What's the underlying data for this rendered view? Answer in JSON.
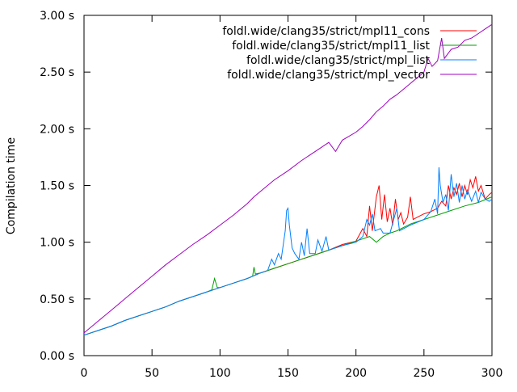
{
  "chart_data": {
    "type": "line",
    "title": "",
    "xlabel": "",
    "ylabel": "Compilation time",
    "xlim": [
      0,
      300
    ],
    "ylim": [
      0,
      3
    ],
    "grid": false,
    "legend_position": "top-right",
    "x_ticks": [
      {
        "value": 0,
        "label": "0"
      },
      {
        "value": 50,
        "label": "50"
      },
      {
        "value": 100,
        "label": "100"
      },
      {
        "value": 150,
        "label": "150"
      },
      {
        "value": 200,
        "label": "200"
      },
      {
        "value": 250,
        "label": "250"
      },
      {
        "value": 300,
        "label": "300"
      }
    ],
    "y_ticks": [
      {
        "value": 0,
        "label": "0.00 s"
      },
      {
        "value": 0.5,
        "label": "0.50 s"
      },
      {
        "value": 1.0,
        "label": "1.00 s"
      },
      {
        "value": 1.5,
        "label": "1.50 s"
      },
      {
        "value": 2.0,
        "label": "2.00 s"
      },
      {
        "value": 2.5,
        "label": "2.50 s"
      },
      {
        "value": 3.0,
        "label": "3.00 s"
      }
    ],
    "series": [
      {
        "name": "foldl.wide/clang35/strict/mpl11_cons",
        "color": "#ff0000",
        "points": [
          [
            0,
            0.18
          ],
          [
            10,
            0.22
          ],
          [
            20,
            0.26
          ],
          [
            30,
            0.31
          ],
          [
            40,
            0.35
          ],
          [
            50,
            0.39
          ],
          [
            60,
            0.43
          ],
          [
            70,
            0.48
          ],
          [
            80,
            0.52
          ],
          [
            90,
            0.56
          ],
          [
            100,
            0.6
          ],
          [
            110,
            0.64
          ],
          [
            120,
            0.68
          ],
          [
            130,
            0.73
          ],
          [
            140,
            0.77
          ],
          [
            150,
            0.81
          ],
          [
            160,
            0.85
          ],
          [
            170,
            0.89
          ],
          [
            180,
            0.93
          ],
          [
            190,
            0.98
          ],
          [
            200,
            1.01
          ],
          [
            205,
            1.12
          ],
          [
            208,
            1.05
          ],
          [
            210,
            1.32
          ],
          [
            212,
            1.1
          ],
          [
            215,
            1.4
          ],
          [
            217,
            1.5
          ],
          [
            219,
            1.2
          ],
          [
            221,
            1.42
          ],
          [
            223,
            1.18
          ],
          [
            225,
            1.3
          ],
          [
            227,
            1.15
          ],
          [
            229,
            1.38
          ],
          [
            231,
            1.2
          ],
          [
            233,
            1.26
          ],
          [
            235,
            1.16
          ],
          [
            238,
            1.22
          ],
          [
            240,
            1.4
          ],
          [
            242,
            1.2
          ],
          [
            245,
            1.22
          ],
          [
            250,
            1.25
          ],
          [
            255,
            1.27
          ],
          [
            260,
            1.3
          ],
          [
            263,
            1.36
          ],
          [
            266,
            1.32
          ],
          [
            268,
            1.5
          ],
          [
            270,
            1.38
          ],
          [
            272,
            1.48
          ],
          [
            274,
            1.42
          ],
          [
            276,
            1.52
          ],
          [
            278,
            1.4
          ],
          [
            280,
            1.5
          ],
          [
            282,
            1.42
          ],
          [
            284,
            1.55
          ],
          [
            286,
            1.48
          ],
          [
            288,
            1.58
          ],
          [
            290,
            1.45
          ],
          [
            292,
            1.5
          ],
          [
            295,
            1.38
          ],
          [
            298,
            1.42
          ],
          [
            300,
            1.44
          ]
        ]
      },
      {
        "name": "foldl.wide/clang35/strict/mpl11_list",
        "color": "#00a000",
        "points": [
          [
            0,
            0.18
          ],
          [
            10,
            0.22
          ],
          [
            20,
            0.26
          ],
          [
            30,
            0.31
          ],
          [
            40,
            0.35
          ],
          [
            50,
            0.39
          ],
          [
            60,
            0.43
          ],
          [
            70,
            0.48
          ],
          [
            80,
            0.52
          ],
          [
            90,
            0.56
          ],
          [
            94,
            0.58
          ],
          [
            96,
            0.68
          ],
          [
            98,
            0.6
          ],
          [
            100,
            0.6
          ],
          [
            110,
            0.64
          ],
          [
            120,
            0.68
          ],
          [
            124,
            0.7
          ],
          [
            125,
            0.78
          ],
          [
            126,
            0.72
          ],
          [
            130,
            0.73
          ],
          [
            140,
            0.77
          ],
          [
            150,
            0.81
          ],
          [
            160,
            0.85
          ],
          [
            170,
            0.89
          ],
          [
            180,
            0.93
          ],
          [
            190,
            0.97
          ],
          [
            200,
            1.01
          ],
          [
            210,
            1.05
          ],
          [
            215,
            1.0
          ],
          [
            220,
            1.05
          ],
          [
            225,
            1.08
          ],
          [
            230,
            1.1
          ],
          [
            240,
            1.16
          ],
          [
            250,
            1.2
          ],
          [
            260,
            1.24
          ],
          [
            270,
            1.28
          ],
          [
            280,
            1.32
          ],
          [
            290,
            1.35
          ],
          [
            300,
            1.4
          ]
        ]
      },
      {
        "name": "foldl.wide/clang35/strict/mpl_list",
        "color": "#0080ff",
        "points": [
          [
            0,
            0.18
          ],
          [
            10,
            0.22
          ],
          [
            20,
            0.26
          ],
          [
            30,
            0.31
          ],
          [
            40,
            0.35
          ],
          [
            50,
            0.39
          ],
          [
            60,
            0.43
          ],
          [
            70,
            0.48
          ],
          [
            80,
            0.52
          ],
          [
            90,
            0.56
          ],
          [
            100,
            0.6
          ],
          [
            110,
            0.64
          ],
          [
            120,
            0.68
          ],
          [
            130,
            0.73
          ],
          [
            135,
            0.75
          ],
          [
            138,
            0.85
          ],
          [
            140,
            0.8
          ],
          [
            143,
            0.9
          ],
          [
            145,
            0.85
          ],
          [
            148,
            1.1
          ],
          [
            149,
            1.28
          ],
          [
            150,
            1.3
          ],
          [
            151,
            1.15
          ],
          [
            153,
            0.95
          ],
          [
            155,
            0.9
          ],
          [
            158,
            0.85
          ],
          [
            160,
            1.0
          ],
          [
            162,
            0.88
          ],
          [
            164,
            1.12
          ],
          [
            166,
            0.9
          ],
          [
            170,
            0.9
          ],
          [
            172,
            1.02
          ],
          [
            175,
            0.92
          ],
          [
            178,
            1.05
          ],
          [
            180,
            0.93
          ],
          [
            190,
            0.97
          ],
          [
            200,
            1.0
          ],
          [
            205,
            1.05
          ],
          [
            208,
            1.2
          ],
          [
            210,
            1.15
          ],
          [
            212,
            1.25
          ],
          [
            214,
            1.1
          ],
          [
            218,
            1.12
          ],
          [
            220,
            1.08
          ],
          [
            225,
            1.08
          ],
          [
            230,
            1.3
          ],
          [
            232,
            1.1
          ],
          [
            240,
            1.15
          ],
          [
            250,
            1.2
          ],
          [
            255,
            1.27
          ],
          [
            258,
            1.38
          ],
          [
            260,
            1.25
          ],
          [
            261,
            1.66
          ],
          [
            262,
            1.5
          ],
          [
            264,
            1.35
          ],
          [
            266,
            1.42
          ],
          [
            268,
            1.28
          ],
          [
            270,
            1.6
          ],
          [
            272,
            1.4
          ],
          [
            274,
            1.52
          ],
          [
            276,
            1.35
          ],
          [
            278,
            1.5
          ],
          [
            280,
            1.38
          ],
          [
            282,
            1.46
          ],
          [
            285,
            1.36
          ],
          [
            288,
            1.45
          ],
          [
            290,
            1.35
          ],
          [
            292,
            1.44
          ],
          [
            295,
            1.38
          ],
          [
            298,
            1.36
          ],
          [
            300,
            1.38
          ]
        ]
      },
      {
        "name": "foldl.wide/clang35/strict/mpl_vector",
        "color": "#a000c0",
        "points": [
          [
            0,
            0.2
          ],
          [
            10,
            0.3
          ],
          [
            20,
            0.4
          ],
          [
            30,
            0.5
          ],
          [
            40,
            0.6
          ],
          [
            50,
            0.7
          ],
          [
            60,
            0.8
          ],
          [
            70,
            0.89
          ],
          [
            80,
            0.98
          ],
          [
            90,
            1.06
          ],
          [
            100,
            1.15
          ],
          [
            110,
            1.24
          ],
          [
            120,
            1.34
          ],
          [
            125,
            1.4
          ],
          [
            130,
            1.45
          ],
          [
            140,
            1.55
          ],
          [
            150,
            1.63
          ],
          [
            160,
            1.72
          ],
          [
            170,
            1.8
          ],
          [
            180,
            1.88
          ],
          [
            185,
            1.8
          ],
          [
            190,
            1.9
          ],
          [
            200,
            1.97
          ],
          [
            205,
            2.02
          ],
          [
            210,
            2.08
          ],
          [
            215,
            2.15
          ],
          [
            220,
            2.2
          ],
          [
            225,
            2.26
          ],
          [
            230,
            2.3
          ],
          [
            235,
            2.35
          ],
          [
            240,
            2.4
          ],
          [
            245,
            2.45
          ],
          [
            250,
            2.5
          ],
          [
            253,
            2.62
          ],
          [
            256,
            2.55
          ],
          [
            260,
            2.6
          ],
          [
            263,
            2.8
          ],
          [
            265,
            2.62
          ],
          [
            270,
            2.7
          ],
          [
            275,
            2.72
          ],
          [
            280,
            2.78
          ],
          [
            285,
            2.8
          ],
          [
            290,
            2.84
          ],
          [
            295,
            2.88
          ],
          [
            300,
            2.92
          ]
        ]
      }
    ]
  }
}
